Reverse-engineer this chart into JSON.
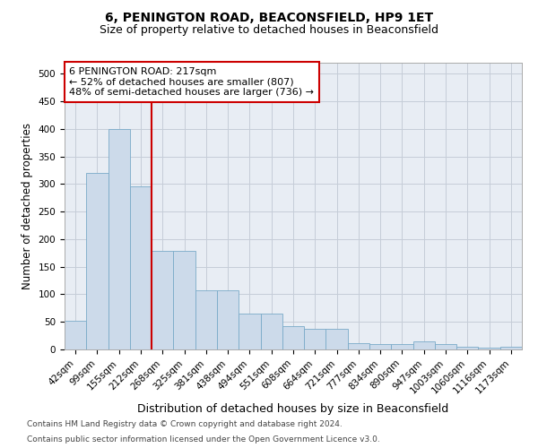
{
  "title": "6, PENINGTON ROAD, BEACONSFIELD, HP9 1ET",
  "subtitle": "Size of property relative to detached houses in Beaconsfield",
  "xlabel": "Distribution of detached houses by size in Beaconsfield",
  "ylabel": "Number of detached properties",
  "footnote1": "Contains HM Land Registry data © Crown copyright and database right 2024.",
  "footnote2": "Contains public sector information licensed under the Open Government Licence v3.0.",
  "bin_labels": [
    "42sqm",
    "99sqm",
    "155sqm",
    "212sqm",
    "268sqm",
    "325sqm",
    "381sqm",
    "438sqm",
    "494sqm",
    "551sqm",
    "608sqm",
    "664sqm",
    "721sqm",
    "777sqm",
    "834sqm",
    "890sqm",
    "947sqm",
    "1003sqm",
    "1060sqm",
    "1116sqm",
    "1173sqm"
  ],
  "bar_values": [
    52,
    320,
    400,
    295,
    178,
    178,
    107,
    107,
    65,
    65,
    42,
    37,
    37,
    12,
    10,
    10,
    14,
    10,
    5,
    3,
    5
  ],
  "bar_color": "#ccdaea",
  "bar_edge_color": "#7aaac8",
  "grid_color": "#c5cdd8",
  "background_color": "#e8edf4",
  "red_line_x": 3.5,
  "red_line_color": "#cc0000",
  "annotation_text": "6 PENINGTON ROAD: 217sqm\n← 52% of detached houses are smaller (807)\n48% of semi-detached houses are larger (736) →",
  "annotation_box_facecolor": "#ffffff",
  "annotation_box_edgecolor": "#cc0000",
  "ylim": [
    0,
    520
  ],
  "yticks": [
    0,
    50,
    100,
    150,
    200,
    250,
    300,
    350,
    400,
    450,
    500
  ],
  "title_fontsize": 10,
  "subtitle_fontsize": 9,
  "xlabel_fontsize": 9,
  "ylabel_fontsize": 8.5,
  "tick_fontsize": 7.5,
  "annot_fontsize": 8
}
